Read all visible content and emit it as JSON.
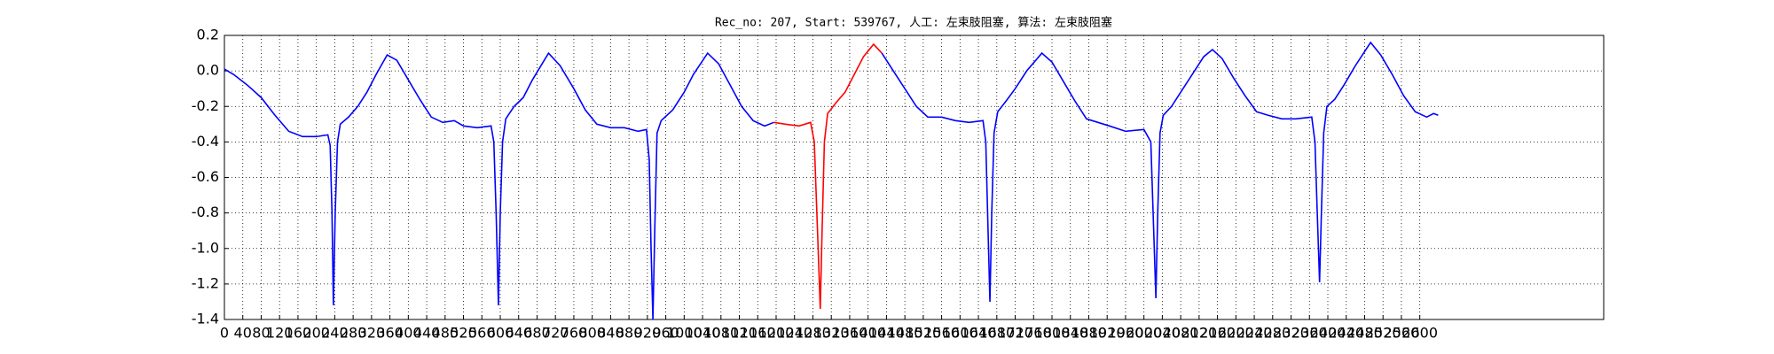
{
  "chart_data": {
    "type": "line",
    "title": "Rec_no: 207, Start: 539767, 人工: 左束肢阻塞, 算法: 左束肢阻塞",
    "xlim": [
      0,
      3000
    ],
    "ylim": [
      -1.4,
      0.2
    ],
    "xticks": [
      0,
      40,
      80,
      120,
      160,
      200,
      240,
      280,
      320,
      360,
      400,
      440,
      480,
      520,
      560,
      600,
      640,
      680,
      720,
      760,
      800,
      840,
      880,
      920,
      960,
      1000,
      1040,
      1080,
      1120,
      1160,
      1200,
      1240,
      1280,
      1320,
      1360,
      1400,
      1440,
      1480,
      1520,
      1560,
      1600,
      1640,
      1680,
      1720,
      1760,
      1800,
      1840,
      1880,
      1920,
      1960,
      2000,
      2040,
      2080,
      2120,
      2160,
      2200,
      2240,
      2280,
      2320,
      2360,
      2400,
      2440,
      2480,
      2520,
      2560,
      2600
    ],
    "yticks": [
      0.2,
      {
        "value": 0,
        "label": "0.0"
      },
      -0.2,
      -0.4,
      -0.6,
      -0.8,
      {
        "value": -1,
        "label": "-1.0"
      },
      -1.2,
      -1.4
    ],
    "grid": true,
    "series": [
      {
        "color": "#0000ff",
        "x": [
          0,
          20,
          50,
          80,
          110,
          140,
          170,
          200,
          225,
          230,
          234,
          237,
          241,
          246,
          252,
          270,
          290,
          310,
          330,
          354,
          375,
          400,
          425,
          450,
          475,
          500,
          520,
          550,
          580,
          586,
          591,
          596,
          600,
          605,
          612,
          630,
          650,
          670,
          705,
          730,
          760,
          785,
          810,
          840,
          870,
          900,
          918,
          924,
          928,
          932,
          936,
          941,
          950,
          975,
          1000,
          1020,
          1051,
          1075,
          1100,
          1125,
          1150,
          1175,
          1195
        ],
        "values": [
          0.01,
          -0.02,
          -0.08,
          -0.15,
          -0.25,
          -0.34,
          -0.37,
          -0.37,
          -0.36,
          -0.42,
          -0.8,
          -1.32,
          -0.8,
          -0.4,
          -0.3,
          -0.26,
          -0.2,
          -0.12,
          -0.02,
          0.09,
          0.06,
          -0.05,
          -0.16,
          -0.26,
          -0.29,
          -0.28,
          -0.31,
          -0.32,
          -0.31,
          -0.4,
          -0.8,
          -1.32,
          -0.8,
          -0.4,
          -0.27,
          -0.2,
          -0.15,
          -0.05,
          0.1,
          0.03,
          -0.1,
          -0.22,
          -0.3,
          -0.32,
          -0.32,
          -0.34,
          -0.33,
          -0.5,
          -1.0,
          -1.4,
          -0.9,
          -0.35,
          -0.28,
          -0.22,
          -0.12,
          -0.02,
          0.1,
          0.04,
          -0.08,
          -0.2,
          -0.28,
          -0.31,
          -0.29
        ]
      },
      {
        "color": "#ff0000",
        "x": [
          1195,
          1220,
          1250,
          1275,
          1283,
          1290,
          1296,
          1300,
          1305,
          1312,
          1330,
          1350,
          1370,
          1390,
          1412,
          1430
        ],
        "values": [
          -0.29,
          -0.3,
          -0.31,
          -0.29,
          -0.4,
          -0.9,
          -1.34,
          -0.9,
          -0.4,
          -0.24,
          -0.18,
          -0.12,
          -0.02,
          0.08,
          0.15,
          0.1
        ]
      },
      {
        "color": "#0000ff",
        "x": [
          1430,
          1455,
          1480,
          1505,
          1530,
          1560,
          1590,
          1620,
          1650,
          1656,
          1661,
          1665,
          1669,
          1674,
          1682,
          1700,
          1720,
          1745,
          1778,
          1800,
          1825,
          1850,
          1875,
          1900,
          1925,
          1960,
          2000,
          2015,
          2020,
          2026,
          2030,
          2035,
          2042,
          2060,
          2080,
          2105,
          2130,
          2149,
          2170,
          2195,
          2220,
          2245,
          2270,
          2300,
          2330,
          2365,
          2372,
          2377,
          2382,
          2386,
          2391,
          2398,
          2415,
          2435,
          2460,
          2493,
          2515,
          2540,
          2565,
          2590,
          2615,
          2630,
          2640
        ],
        "values": [
          0.1,
          0.0,
          -0.1,
          -0.2,
          -0.26,
          -0.26,
          -0.28,
          -0.29,
          -0.28,
          -0.4,
          -0.9,
          -1.3,
          -0.8,
          -0.35,
          -0.23,
          -0.17,
          -0.1,
          0.0,
          0.1,
          0.05,
          -0.06,
          -0.17,
          -0.27,
          -0.29,
          -0.31,
          -0.34,
          -0.33,
          -0.4,
          -0.8,
          -1.28,
          -0.8,
          -0.35,
          -0.25,
          -0.2,
          -0.12,
          -0.02,
          0.08,
          0.12,
          0.07,
          -0.04,
          -0.14,
          -0.23,
          -0.25,
          -0.27,
          -0.27,
          -0.26,
          -0.4,
          -0.8,
          -1.19,
          -0.8,
          -0.35,
          -0.2,
          -0.16,
          -0.08,
          0.03,
          0.16,
          0.09,
          -0.02,
          -0.14,
          -0.23,
          -0.26,
          -0.24,
          -0.25
        ]
      }
    ]
  }
}
